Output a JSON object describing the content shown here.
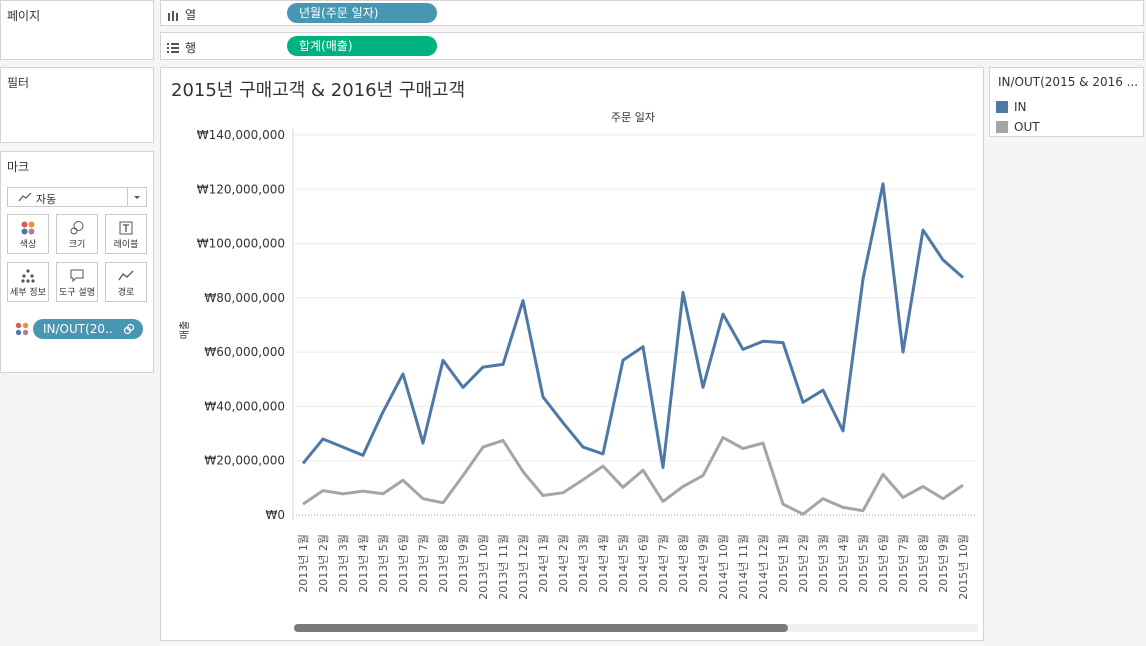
{
  "panels": {
    "pages": "페이지",
    "filters": "필터",
    "marks": "마크"
  },
  "shelves": {
    "columns": {
      "label": "열",
      "pill": "년월(주문 일자)"
    },
    "rows": {
      "label": "행",
      "pill": "합계(매출)"
    }
  },
  "marks": {
    "type": "자동",
    "buttons": {
      "color": "색상",
      "size": "크기",
      "label": "레이블",
      "detail": "세부 정보",
      "tooltip": "도구 설명",
      "path": "경로"
    },
    "color_pill": "IN/OUT(20.."
  },
  "colors": {
    "in": "#4e79a7",
    "out": "#a5a5a5",
    "col_pill": "#4996b2",
    "row_pill": "#00b180"
  },
  "legend": {
    "title": "IN/OUT(2015 & 2016 ...",
    "items": [
      "IN",
      "OUT"
    ]
  },
  "chart_data": {
    "type": "line",
    "title": "2015년 구매고객 & 2016년 구매고객",
    "header": "주문 일자",
    "ylabel": "매출",
    "ylim": [
      0,
      140000000
    ],
    "yticks": [
      "₩140,000,000",
      "₩120,000,000",
      "₩100,000,000",
      "₩80,000,000",
      "₩60,000,000",
      "₩40,000,000",
      "₩20,000,000",
      "₩0"
    ],
    "categories": [
      "2013년 1월",
      "2013년 2월",
      "2013년 3월",
      "2013년 4월",
      "2013년 5월",
      "2013년 6월",
      "2013년 7월",
      "2013년 8월",
      "2013년 9월",
      "2013년 10월",
      "2013년 11월",
      "2013년 12월",
      "2014년 1월",
      "2014년 2월",
      "2014년 3월",
      "2014년 4월",
      "2014년 5월",
      "2014년 6월",
      "2014년 7월",
      "2014년 8월",
      "2014년 9월",
      "2014년 10월",
      "2014년 11월",
      "2014년 12월",
      "2015년 1월",
      "2015년 2월",
      "2015년 3월",
      "2015년 4월",
      "2015년 5월",
      "2015년 6월",
      "2015년 7월",
      "2015년 8월",
      "2015년 9월",
      "2015년 10월"
    ],
    "series": [
      {
        "name": "IN",
        "values": [
          19000000,
          28000000,
          25000000,
          22000000,
          38000000,
          52000000,
          26500000,
          57000000,
          47000000,
          54500000,
          55500000,
          79000000,
          43500000,
          34000000,
          25000000,
          22500000,
          57000000,
          62000000,
          17500000,
          82000000,
          47000000,
          74000000,
          61000000,
          64000000,
          63500000,
          41500000,
          46000000,
          31000000,
          87000000,
          122000000,
          60000000,
          105000000,
          94000000,
          87500000
        ]
      },
      {
        "name": "OUT",
        "values": [
          4000000,
          9000000,
          7800000,
          8800000,
          7800000,
          12800000,
          6000000,
          4500000,
          14500000,
          25000000,
          27500000,
          16000000,
          7200000,
          8200000,
          13000000,
          18000000,
          10200000,
          16500000,
          5000000,
          10500000,
          14500000,
          28500000,
          24500000,
          26500000,
          4000000,
          300000,
          6000000,
          2800000,
          1600000,
          15000000,
          6500000,
          10500000,
          6000000,
          11000000
        ]
      }
    ]
  }
}
